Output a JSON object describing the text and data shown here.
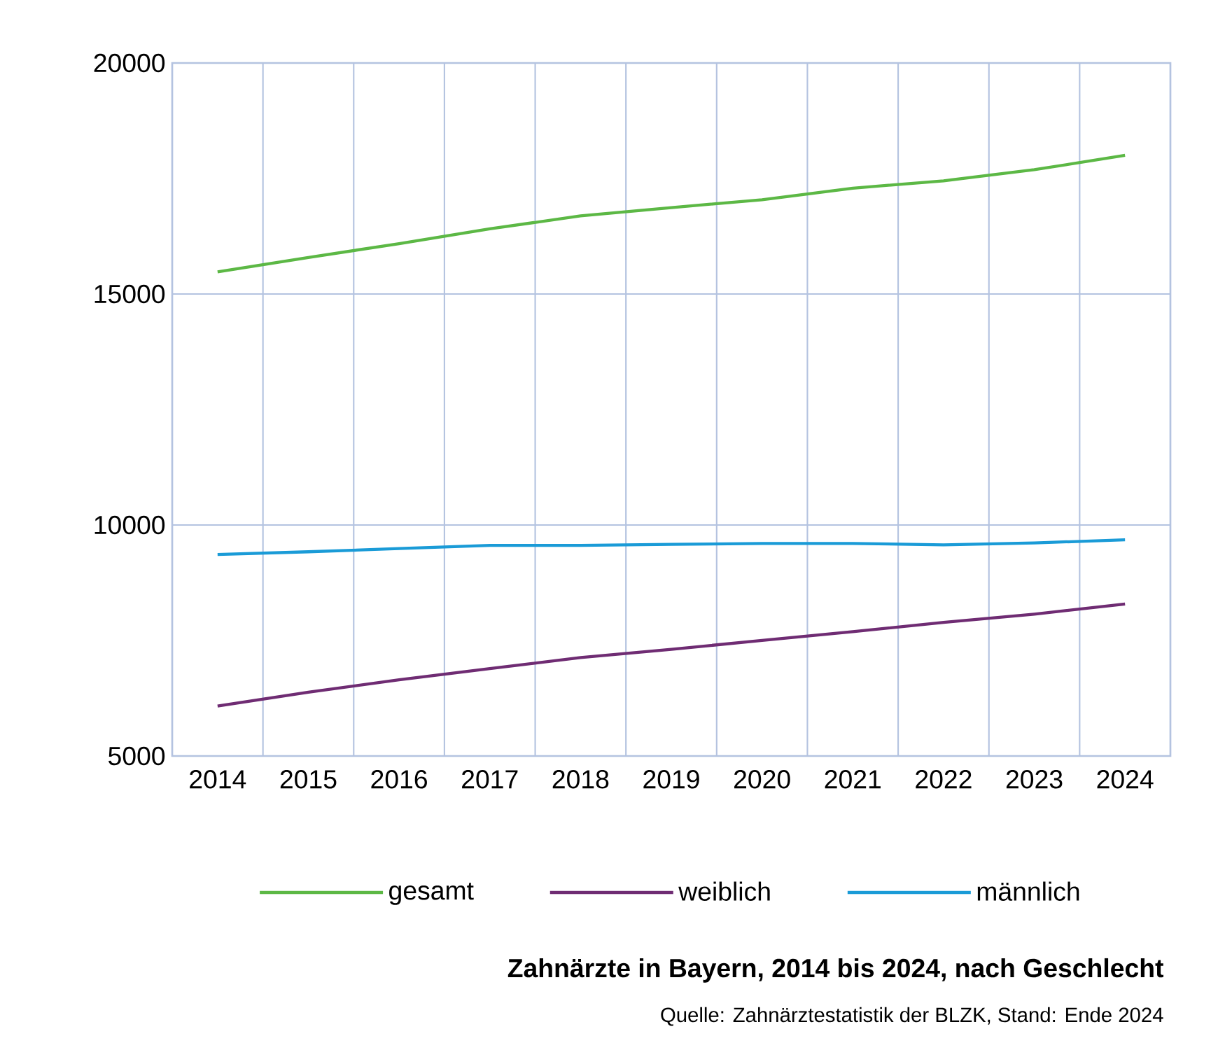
{
  "chart_data": {
    "type": "line",
    "title": "Zahnärzte in Bayern, 2014 bis 2024, nach Geschlecht",
    "annotations": [
      "Quelle: Zahnärztestatistik der BLZK, Stand: Ende 2024"
    ],
    "categories": [
      "2014",
      "2015",
      "2016",
      "2017",
      "2018",
      "2019",
      "2020",
      "2021",
      "2022",
      "2023",
      "2024"
    ],
    "series": [
      {
        "name": "gesamt",
        "color": "#5cb845",
        "values": [
          15480,
          15790,
          16090,
          16410,
          16690,
          16870,
          17040,
          17290,
          17450,
          17690,
          18000
        ]
      },
      {
        "name": "weiblich",
        "color": "#6f2c73",
        "values": [
          6080,
          6380,
          6650,
          6890,
          7130,
          7310,
          7500,
          7690,
          7890,
          8070,
          8290
        ]
      },
      {
        "name": "männlich",
        "color": "#1a9bd7",
        "values": [
          9360,
          9420,
          9490,
          9560,
          9560,
          9580,
          9600,
          9600,
          9570,
          9610,
          9680
        ]
      }
    ],
    "ylim": [
      5000,
      20000
    ],
    "yticks": [
      5000,
      10000,
      15000,
      20000
    ],
    "grid": true,
    "legend": "bottom"
  }
}
